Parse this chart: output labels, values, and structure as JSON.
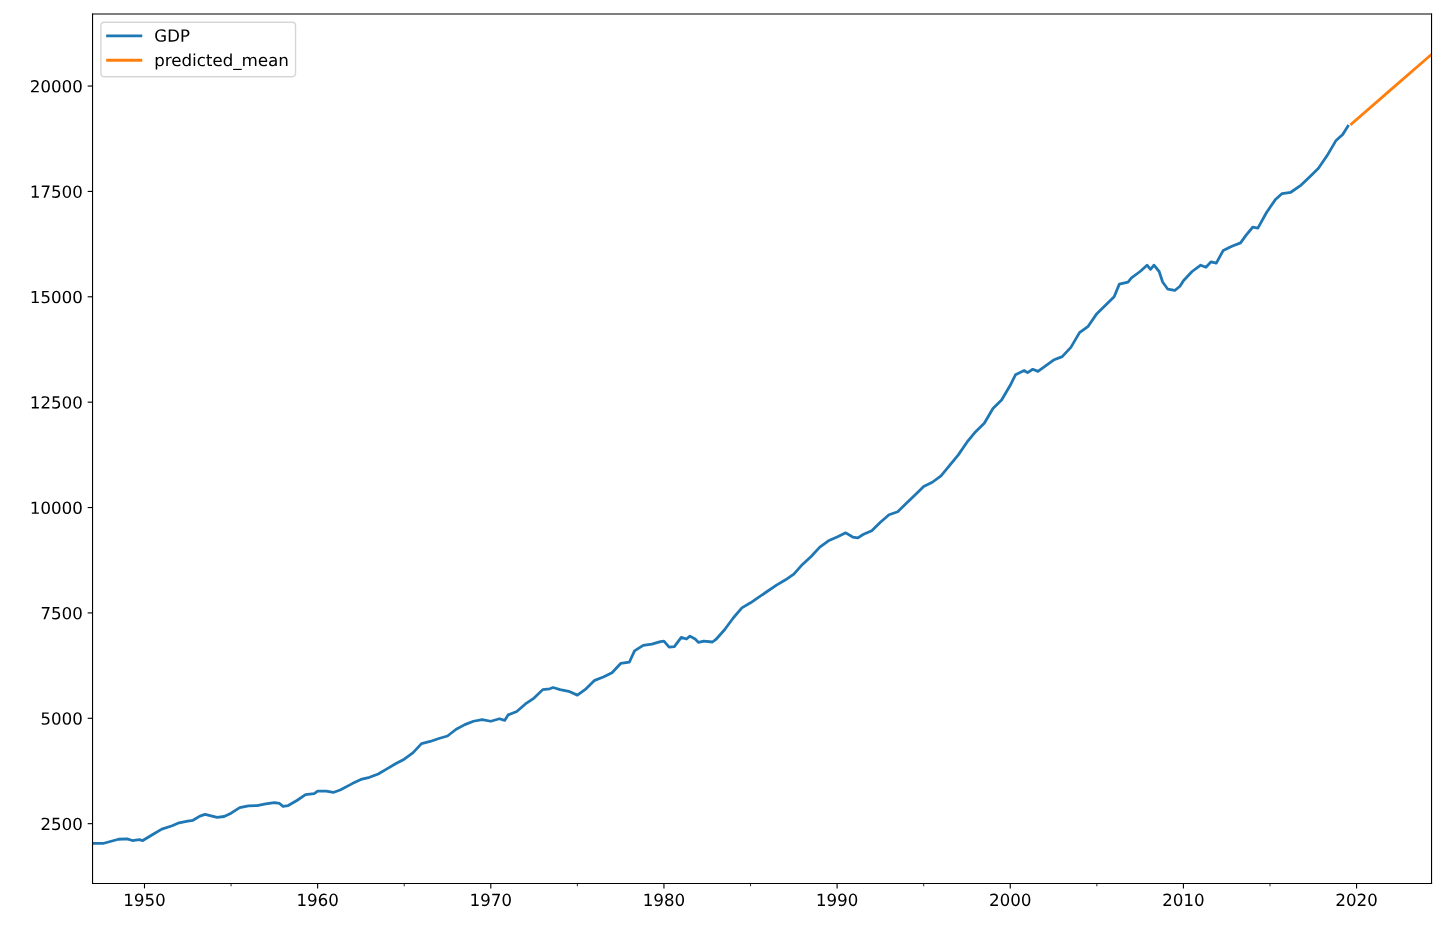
{
  "chart_data": {
    "type": "line",
    "xlim": [
      1947,
      2024.33
    ],
    "ylim": [
      1080,
      21710
    ],
    "xticks": [
      1950,
      {
        "value": 1955,
        "label": null
      },
      1960,
      {
        "value": 1965,
        "label": null
      },
      1970,
      {
        "value": 1975,
        "label": null
      },
      1980,
      {
        "value": 1985,
        "label": null
      },
      1990,
      {
        "value": 1995,
        "label": null
      },
      2000,
      {
        "value": 2005,
        "label": null
      },
      2010,
      {
        "value": 2015,
        "label": null
      },
      2020
    ],
    "yticks": [
      2500,
      5000,
      7500,
      10000,
      12500,
      15000,
      17500,
      20000
    ],
    "legend": "top left",
    "grid": false,
    "marker": "none",
    "line_style": "solid",
    "series": [
      {
        "name": "GDP",
        "color": "#1f77b4",
        "x": [
          1947.0,
          1947.6,
          1948.5,
          1949.0,
          1949.3,
          1949.7,
          1949.9,
          1950.5,
          1951.0,
          1951.6,
          1952.0,
          1952.5,
          1952.8,
          1953.2,
          1953.5,
          1953.9,
          1954.2,
          1954.6,
          1955.0,
          1955.5,
          1956.0,
          1956.5,
          1957.0,
          1957.5,
          1957.8,
          1958.0,
          1958.3,
          1958.8,
          1959.3,
          1959.8,
          1960.0,
          1960.5,
          1960.9,
          1961.3,
          1962.0,
          1962.5,
          1963.0,
          1963.5,
          1964.0,
          1964.5,
          1965.0,
          1965.5,
          1966.0,
          1966.5,
          1967.0,
          1967.5,
          1968.0,
          1968.5,
          1969.0,
          1969.5,
          1970.0,
          1970.5,
          1970.8,
          1971.0,
          1971.5,
          1972.0,
          1972.5,
          1973.0,
          1973.4,
          1973.6,
          1974.0,
          1974.5,
          1975.0,
          1975.5,
          1976.0,
          1976.5,
          1977.0,
          1977.5,
          1978.0,
          1978.3,
          1978.8,
          1979.3,
          1979.8,
          1980.0,
          1980.3,
          1980.6,
          1981.0,
          1981.3,
          1981.5,
          1981.8,
          1982.0,
          1982.3,
          1982.8,
          1983.0,
          1983.5,
          1984.0,
          1984.5,
          1985.0,
          1985.5,
          1986.0,
          1986.5,
          1987.0,
          1987.5,
          1988.0,
          1988.5,
          1989.0,
          1989.5,
          1990.0,
          1990.5,
          1990.9,
          1991.2,
          1991.5,
          1992.0,
          1992.5,
          1993.0,
          1993.5,
          1994.0,
          1994.5,
          1995.0,
          1995.5,
          1996.0,
          1996.5,
          1997.0,
          1997.5,
          1998.0,
          1998.5,
          1999.0,
          1999.5,
          2000.0,
          2000.3,
          2000.8,
          2001.0,
          2001.3,
          2001.6,
          2002.0,
          2002.5,
          2003.0,
          2003.5,
          2004.0,
          2004.5,
          2005.0,
          2005.5,
          2006.0,
          2006.3,
          2006.8,
          2007.0,
          2007.5,
          2007.9,
          2008.1,
          2008.3,
          2008.6,
          2008.8,
          2009.1,
          2009.5,
          2009.8,
          2010.0,
          2010.5,
          2011.0,
          2011.3,
          2011.6,
          2011.9,
          2012.3,
          2012.8,
          2013.3,
          2013.6,
          2014.0,
          2014.3,
          2014.8,
          2015.3,
          2015.7,
          2016.2,
          2016.8,
          2017.3,
          2017.8,
          2018.3,
          2018.8,
          2019.2,
          2019.5
        ],
        "values": [
          2030,
          2030,
          2130,
          2140,
          2100,
          2120,
          2100,
          2250,
          2370,
          2450,
          2520,
          2560,
          2580,
          2680,
          2720,
          2680,
          2650,
          2670,
          2750,
          2880,
          2920,
          2930,
          2970,
          3000,
          2980,
          2910,
          2930,
          3050,
          3190,
          3210,
          3270,
          3270,
          3240,
          3300,
          3450,
          3550,
          3600,
          3680,
          3800,
          3920,
          4030,
          4180,
          4400,
          4450,
          4520,
          4580,
          4740,
          4850,
          4930,
          4970,
          4930,
          4990,
          4950,
          5080,
          5160,
          5340,
          5480,
          5680,
          5700,
          5730,
          5680,
          5640,
          5550,
          5700,
          5900,
          5980,
          6080,
          6300,
          6330,
          6600,
          6730,
          6760,
          6820,
          6830,
          6690,
          6700,
          6920,
          6880,
          6950,
          6880,
          6800,
          6830,
          6810,
          6870,
          7100,
          7380,
          7620,
          7740,
          7880,
          8020,
          8160,
          8280,
          8420,
          8650,
          8840,
          9060,
          9210,
          9300,
          9400,
          9300,
          9280,
          9360,
          9450,
          9650,
          9830,
          9900,
          10100,
          10300,
          10500,
          10600,
          10750,
          11000,
          11250,
          11550,
          11800,
          12000,
          12350,
          12550,
          12900,
          13150,
          13250,
          13200,
          13280,
          13230,
          13350,
          13500,
          13580,
          13800,
          14150,
          14300,
          14600,
          14800,
          15000,
          15300,
          15350,
          15450,
          15600,
          15750,
          15650,
          15750,
          15600,
          15350,
          15180,
          15150,
          15250,
          15380,
          15600,
          15750,
          15700,
          15830,
          15800,
          16100,
          16200,
          16280,
          16450,
          16650,
          16630,
          17000,
          17300,
          17450,
          17480,
          17650,
          17850,
          18050,
          18350,
          18700,
          18850,
          19050
        ]
      },
      {
        "name": "predicted_mean",
        "color": "#ff7f0e",
        "x": [
          2019.7,
          2022.0,
          2024.33
        ],
        "values": [
          19100,
          19920,
          20750
        ]
      }
    ]
  }
}
